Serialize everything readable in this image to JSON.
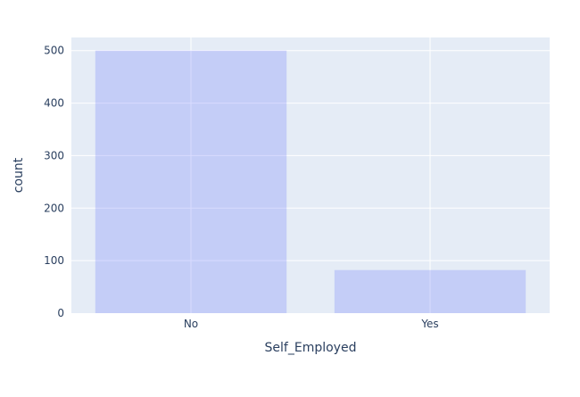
{
  "chart_data": {
    "type": "bar",
    "categories": [
      "No",
      "Yes"
    ],
    "values": [
      500,
      82
    ],
    "xlabel": "Self_Employed",
    "ylabel": "count",
    "ylim": [
      0,
      525
    ],
    "yticks": [
      0,
      100,
      200,
      300,
      400,
      500
    ],
    "grid": true,
    "legend": "none",
    "colors": {
      "plot_bg": "#e5ecf6",
      "bar": "#636efa",
      "bar_opacity": 0.25,
      "grid": "#ffffff",
      "text": "#2a3f5f"
    }
  }
}
